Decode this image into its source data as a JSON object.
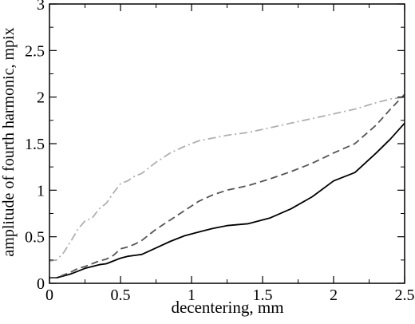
{
  "chart_data": {
    "type": "line",
    "title": "",
    "xlabel": "decentering, mm",
    "ylabel": "amplitude of fourth harmonic, mpix",
    "xlim": [
      0,
      2.5
    ],
    "ylim": [
      0,
      3
    ],
    "xticks": [
      0,
      0.5,
      1,
      1.5,
      2,
      2.5
    ],
    "xtick_labels": [
      "0",
      "0.5",
      "1",
      "1.5",
      "2",
      "2.5"
    ],
    "yticks": [
      0,
      0.5,
      1,
      1.5,
      2,
      2.5,
      3
    ],
    "ytick_labels": [
      "0",
      "0.5",
      "1",
      "1.5",
      "2",
      "2.5",
      "3"
    ],
    "grid": false,
    "legend": "none",
    "series": [
      {
        "style": "solid",
        "color": "#000000",
        "x": [
          0,
          0.05,
          0.1,
          0.15,
          0.2,
          0.25,
          0.3,
          0.35,
          0.4,
          0.45,
          0.5,
          0.55,
          0.6,
          0.65,
          0.75,
          0.85,
          0.95,
          1.05,
          1.15,
          1.25,
          1.4,
          1.55,
          1.7,
          1.85,
          2.0,
          2.15,
          2.3,
          2.4,
          2.5
        ],
        "y": [
          0.06,
          0.06,
          0.08,
          0.1,
          0.13,
          0.16,
          0.18,
          0.2,
          0.21,
          0.24,
          0.27,
          0.29,
          0.3,
          0.31,
          0.38,
          0.45,
          0.51,
          0.55,
          0.59,
          0.62,
          0.64,
          0.7,
          0.8,
          0.93,
          1.1,
          1.19,
          1.4,
          1.55,
          1.72
        ]
      },
      {
        "style": "dashed",
        "color": "#555555",
        "x": [
          0,
          0.05,
          0.1,
          0.15,
          0.2,
          0.25,
          0.3,
          0.35,
          0.4,
          0.45,
          0.5,
          0.55,
          0.6,
          0.65,
          0.75,
          0.85,
          0.95,
          1.05,
          1.15,
          1.25,
          1.4,
          1.55,
          1.7,
          1.85,
          2.0,
          2.15,
          2.3,
          2.4,
          2.5
        ],
        "y": [
          0.06,
          0.06,
          0.09,
          0.12,
          0.16,
          0.18,
          0.21,
          0.24,
          0.26,
          0.3,
          0.37,
          0.39,
          0.42,
          0.46,
          0.58,
          0.68,
          0.78,
          0.88,
          0.95,
          1.0,
          1.05,
          1.12,
          1.2,
          1.29,
          1.4,
          1.5,
          1.7,
          1.87,
          2.03
        ]
      },
      {
        "style": "dash-dot",
        "color": "#b0b0b0",
        "x": [
          0,
          0.05,
          0.1,
          0.15,
          0.2,
          0.25,
          0.3,
          0.35,
          0.4,
          0.45,
          0.5,
          0.55,
          0.6,
          0.65,
          0.75,
          0.85,
          0.95,
          1.05,
          1.15,
          1.25,
          1.4,
          1.55,
          1.7,
          1.85,
          2.0,
          2.15,
          2.3,
          2.4,
          2.5
        ],
        "y": [
          0.24,
          0.25,
          0.33,
          0.45,
          0.58,
          0.67,
          0.7,
          0.8,
          0.86,
          0.97,
          1.07,
          1.1,
          1.15,
          1.18,
          1.3,
          1.4,
          1.47,
          1.53,
          1.56,
          1.59,
          1.62,
          1.67,
          1.72,
          1.77,
          1.82,
          1.87,
          1.94,
          1.98,
          2.0
        ]
      }
    ]
  }
}
